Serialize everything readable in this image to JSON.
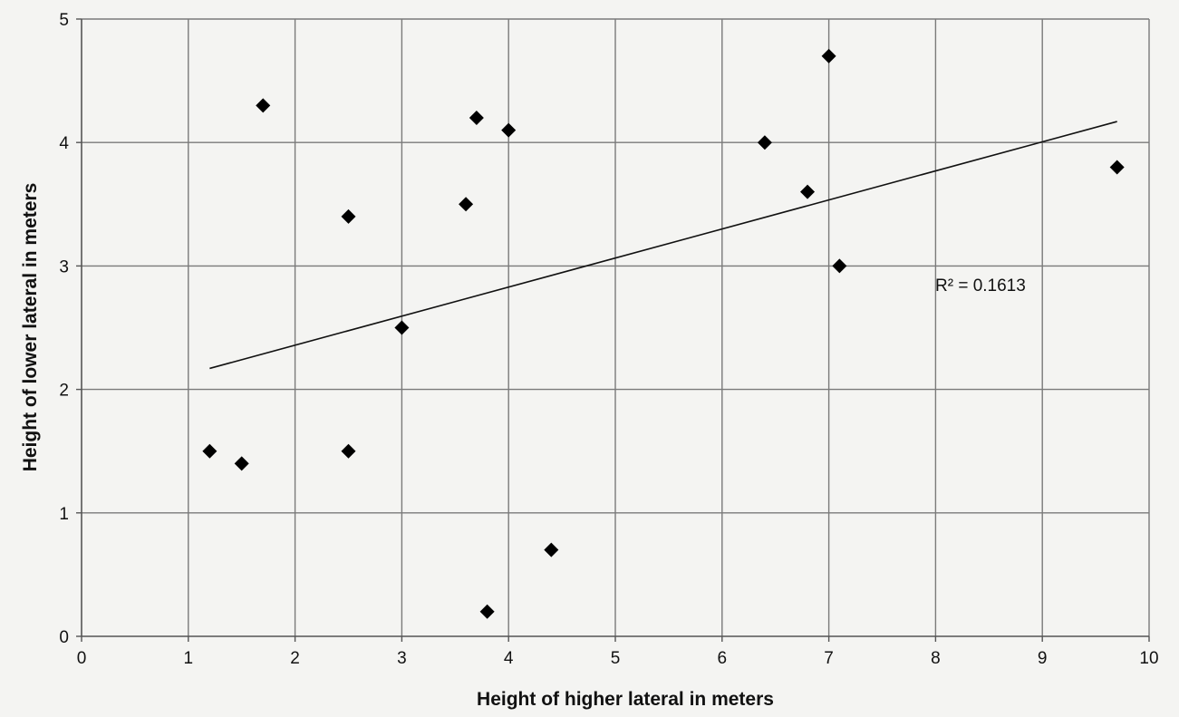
{
  "chart_data": {
    "type": "scatter",
    "title": "",
    "xlabel": "Height of higher lateral in meters",
    "ylabel": "Height of lower lateral in meters",
    "xlim": [
      0,
      10
    ],
    "ylim": [
      0,
      5
    ],
    "x_ticks": [
      0,
      1,
      2,
      3,
      4,
      5,
      6,
      7,
      8,
      9,
      10
    ],
    "y_ticks": [
      0,
      1,
      2,
      3,
      4,
      5
    ],
    "grid": true,
    "legend": "none",
    "marker": "diamond",
    "marker_color": "#000000",
    "series": [
      {
        "points": [
          {
            "x": 1.2,
            "y": 1.5
          },
          {
            "x": 1.5,
            "y": 1.4
          },
          {
            "x": 1.7,
            "y": 4.3
          },
          {
            "x": 2.5,
            "y": 3.4
          },
          {
            "x": 2.5,
            "y": 1.5
          },
          {
            "x": 3.0,
            "y": 2.5
          },
          {
            "x": 3.6,
            "y": 3.5
          },
          {
            "x": 3.7,
            "y": 4.2
          },
          {
            "x": 3.8,
            "y": 0.2
          },
          {
            "x": 4.0,
            "y": 4.1
          },
          {
            "x": 4.4,
            "y": 0.7
          },
          {
            "x": 6.4,
            "y": 4.0
          },
          {
            "x": 6.8,
            "y": 3.6
          },
          {
            "x": 7.0,
            "y": 4.7
          },
          {
            "x": 7.1,
            "y": 3.0
          },
          {
            "x": 9.7,
            "y": 3.8
          }
        ]
      }
    ],
    "trendline": {
      "type": "linear",
      "x_start": 1.2,
      "y_start": 2.17,
      "x_end": 9.7,
      "y_end": 4.17,
      "label": "R² = 0.1613"
    }
  }
}
